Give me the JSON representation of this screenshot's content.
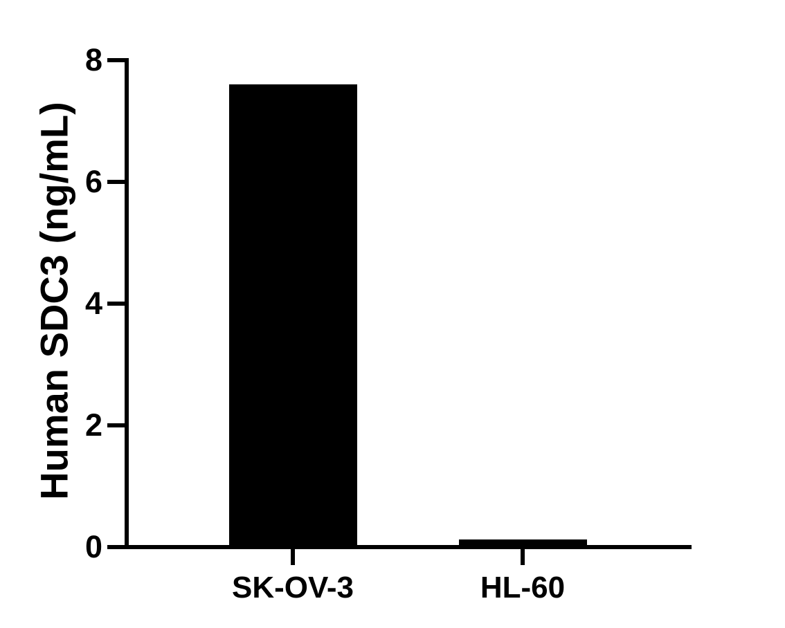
{
  "chart_data": {
    "type": "bar",
    "title": "",
    "categories": [
      "SK-OV-3",
      "HL-60"
    ],
    "values": [
      7.6,
      0.12
    ],
    "xlabel": "",
    "ylabel": "Human SDC3 (ng/mL)",
    "ylim": [
      0,
      8
    ],
    "yticks": [
      0,
      2,
      4,
      6,
      8
    ],
    "ytick_labels": [
      "0",
      "2",
      "4",
      "6",
      "8"
    ],
    "grid": false,
    "legend": null,
    "bar_color": "#000000",
    "axis_color": "#000000",
    "text_color": "#000000",
    "background_color": "#ffffff"
  }
}
